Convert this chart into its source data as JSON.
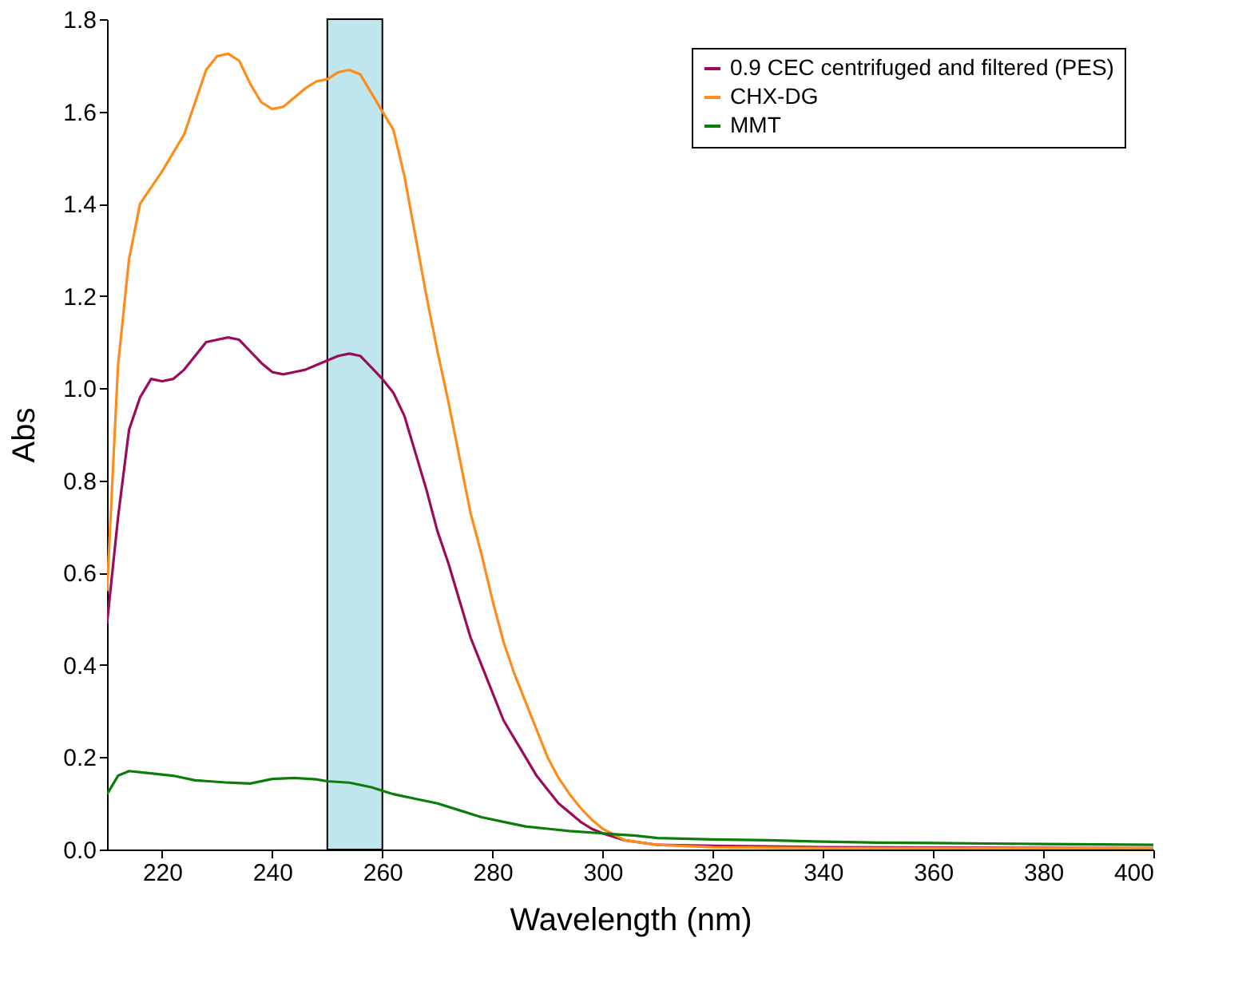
{
  "chart_data": {
    "type": "line",
    "xlabel": "Wavelength (nm)",
    "ylabel": "Abs",
    "xlim": [
      210,
      400
    ],
    "xticks": [
      220,
      240,
      260,
      280,
      300,
      320,
      340,
      360,
      380,
      400
    ],
    "ylim": [
      0,
      1.8
    ],
    "yticks": [
      {
        "value": 0,
        "label": "0.0"
      },
      {
        "value": 0.2,
        "label": "0.2"
      },
      {
        "value": 0.4,
        "label": "0.4"
      },
      {
        "value": 0.6,
        "label": "0.6"
      },
      {
        "value": 0.8,
        "label": "0.8"
      },
      {
        "value": 1.0,
        "label": "1.0"
      },
      {
        "value": 1.2,
        "label": "1.2"
      },
      {
        "value": 1.4,
        "label": "1.4"
      },
      {
        "value": 1.6,
        "label": "1.6"
      },
      {
        "value": 1.8,
        "label": "1.8"
      }
    ],
    "grid": false,
    "legend": "top right",
    "line_style": "solid",
    "bands": [
      {
        "axis": "x",
        "from": 250,
        "to": 260,
        "color": "#bfe6ec"
      }
    ],
    "series": [
      {
        "name": "0.9 CEC centrifuged and filtered (PES)",
        "color": "#9c0a5c",
        "x": [
          210,
          212,
          214,
          216,
          218,
          220,
          222,
          224,
          226,
          228,
          230,
          232,
          234,
          236,
          238,
          240,
          242,
          244,
          246,
          248,
          250,
          252,
          254,
          256,
          258,
          260,
          262,
          264,
          266,
          268,
          270,
          272,
          274,
          276,
          278,
          280,
          282,
          284,
          286,
          288,
          290,
          292,
          294,
          296,
          298,
          300,
          304,
          310,
          320,
          340,
          400
        ],
        "values": [
          0.49,
          0.72,
          0.91,
          0.98,
          1.02,
          1.015,
          1.02,
          1.04,
          1.07,
          1.1,
          1.105,
          1.11,
          1.105,
          1.08,
          1.055,
          1.035,
          1.03,
          1.035,
          1.04,
          1.05,
          1.06,
          1.07,
          1.075,
          1.07,
          1.045,
          1.02,
          0.99,
          0.94,
          0.86,
          0.78,
          0.69,
          0.62,
          0.54,
          0.46,
          0.4,
          0.34,
          0.28,
          0.24,
          0.2,
          0.16,
          0.13,
          0.1,
          0.08,
          0.06,
          0.045,
          0.035,
          0.02,
          0.01,
          0.008,
          0.005,
          0.003
        ]
      },
      {
        "name": "CHX-DG",
        "color": "#ff8c1a",
        "x": [
          210,
          212,
          214,
          216,
          220,
          224,
          226,
          228,
          230,
          232,
          234,
          236,
          238,
          240,
          242,
          244,
          246,
          248,
          250,
          252,
          254,
          256,
          258,
          260,
          262,
          264,
          266,
          268,
          270,
          272,
          274,
          276,
          278,
          280,
          282,
          284,
          286,
          288,
          290,
          292,
          294,
          296,
          298,
          300,
          304,
          310,
          320,
          340,
          400
        ],
        "values": [
          0.56,
          1.05,
          1.28,
          1.4,
          1.47,
          1.55,
          1.62,
          1.69,
          1.72,
          1.725,
          1.71,
          1.66,
          1.62,
          1.605,
          1.61,
          1.63,
          1.65,
          1.665,
          1.67,
          1.685,
          1.69,
          1.68,
          1.64,
          1.6,
          1.56,
          1.46,
          1.33,
          1.2,
          1.08,
          0.97,
          0.85,
          0.73,
          0.64,
          0.54,
          0.45,
          0.38,
          0.32,
          0.26,
          0.2,
          0.155,
          0.12,
          0.09,
          0.065,
          0.045,
          0.02,
          0.01,
          0.005,
          0.003,
          0.003
        ]
      },
      {
        "name": "MMT",
        "color": "#0a7d0a",
        "x": [
          210,
          212,
          214,
          218,
          222,
          226,
          232,
          236,
          240,
          244,
          248,
          250,
          254,
          258,
          262,
          266,
          270,
          274,
          278,
          282,
          286,
          290,
          294,
          300,
          306,
          310,
          320,
          330,
          340,
          350,
          360,
          370,
          380,
          390,
          400
        ],
        "values": [
          0.12,
          0.16,
          0.17,
          0.165,
          0.16,
          0.15,
          0.145,
          0.143,
          0.153,
          0.155,
          0.152,
          0.148,
          0.145,
          0.135,
          0.12,
          0.11,
          0.1,
          0.085,
          0.07,
          0.06,
          0.05,
          0.045,
          0.04,
          0.035,
          0.03,
          0.025,
          0.022,
          0.02,
          0.017,
          0.015,
          0.014,
          0.013,
          0.012,
          0.011,
          0.01
        ]
      }
    ]
  }
}
